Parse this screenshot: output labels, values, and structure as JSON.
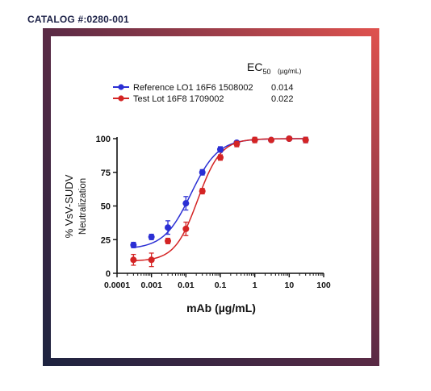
{
  "header": {
    "catalog_label": "CATALOG #:0280-001"
  },
  "colors": {
    "reference": "#2b2fd4",
    "test": "#d42424",
    "frame_start": "#1d2340",
    "frame_end": "#e0524e"
  },
  "chart_data": {
    "type": "scatter",
    "ec50_header": "EC",
    "ec50_sub": "50",
    "ec50_unit": "(µg/mL)",
    "xlabel": "mAb (µg/mL)",
    "ylabel_line1": "% VsV-SUDV",
    "ylabel_line2": "Neutralization",
    "x_scale": "log",
    "xlim": [
      0.0001,
      100
    ],
    "ylim": [
      0,
      100
    ],
    "x_ticks": [
      0.0001,
      0.001,
      0.01,
      0.1,
      1,
      10,
      100
    ],
    "x_tick_labels": [
      "0.0001",
      "0.001",
      "0.01",
      "0.1",
      "1",
      "10",
      "100"
    ],
    "y_ticks": [
      0,
      25,
      50,
      75,
      100
    ],
    "y_tick_labels": [
      "0",
      "25",
      "50",
      "75",
      "100"
    ],
    "legend_position": "top",
    "series": [
      {
        "name": "Reference LO1 16F6 1508002",
        "ec50": "0.014",
        "color": "#2b2fd4",
        "x": [
          0.0003,
          0.001,
          0.003,
          0.01,
          0.03,
          0.1,
          0.3,
          1,
          3,
          10,
          30
        ],
        "y": [
          21,
          27,
          34,
          52,
          75,
          92,
          97,
          99,
          99,
          100,
          99
        ],
        "err": [
          2,
          2,
          5,
          5,
          2,
          2,
          1,
          1,
          1,
          1,
          2
        ],
        "fit": {
          "bottom": 18,
          "top": 100,
          "ec50": 0.014,
          "hill": 1.1
        }
      },
      {
        "name": "Test Lot 16F8 1709002",
        "ec50": "0.022",
        "color": "#d42424",
        "x": [
          0.0003,
          0.001,
          0.003,
          0.01,
          0.03,
          0.1,
          0.3,
          1,
          3,
          10,
          30
        ],
        "y": [
          10,
          10,
          24,
          33,
          61,
          86,
          96,
          99,
          99,
          100,
          99
        ],
        "err": [
          4,
          5,
          2,
          5,
          2,
          2,
          2,
          2,
          1,
          1,
          2
        ],
        "fit": {
          "bottom": 9,
          "top": 100,
          "ec50": 0.022,
          "hill": 1.3
        }
      }
    ]
  }
}
